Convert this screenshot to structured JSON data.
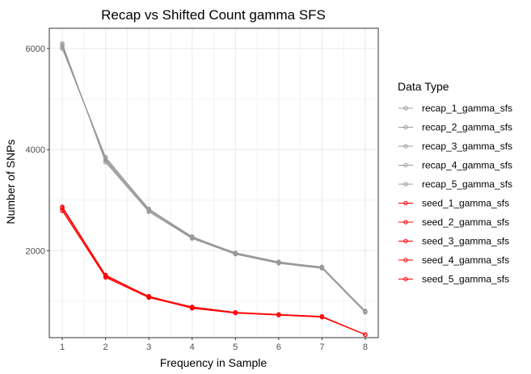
{
  "chart_data": {
    "type": "line",
    "title": "Recap vs Shifted Count gamma SFS",
    "xlabel": "Frequency in Sample",
    "ylabel": "Number of SNPs",
    "x": [
      1,
      2,
      3,
      4,
      5,
      6,
      7,
      8
    ],
    "xlim": [
      0.7,
      8.3
    ],
    "ylim": [
      280,
      6400
    ],
    "yticks": [
      2000,
      4000,
      6000
    ],
    "grid": true,
    "legend_title": "Data Type",
    "legend_position": "right",
    "colors": {
      "recap": "#999999",
      "seed": "#ff0000",
      "panel_border": "#333333",
      "grid": "#ebebeb"
    },
    "series": [
      {
        "name": "recap_1_gamma_sfs",
        "group": "recap",
        "values": [
          6080,
          3780,
          2790,
          2250,
          1940,
          1760,
          1660,
          790
        ]
      },
      {
        "name": "recap_2_gamma_sfs",
        "group": "recap",
        "values": [
          6000,
          3830,
          2830,
          2270,
          1960,
          1780,
          1670,
          810
        ]
      },
      {
        "name": "recap_3_gamma_sfs",
        "group": "recap",
        "values": [
          6100,
          3750,
          2770,
          2240,
          1930,
          1750,
          1650,
          780
        ]
      },
      {
        "name": "recap_4_gamma_sfs",
        "group": "recap",
        "values": [
          6020,
          3850,
          2820,
          2280,
          1950,
          1770,
          1680,
          800
        ]
      },
      {
        "name": "recap_5_gamma_sfs",
        "group": "recap",
        "values": [
          6050,
          3800,
          2800,
          2260,
          1945,
          1765,
          1660,
          790
        ]
      },
      {
        "name": "seed_1_gamma_sfs",
        "group": "seed",
        "values": [
          2870,
          1520,
          1090,
          890,
          780,
          740,
          700,
          340
        ]
      },
      {
        "name": "seed_2_gamma_sfs",
        "group": "seed",
        "values": [
          2800,
          1470,
          1070,
          870,
          770,
          730,
          690,
          340
        ]
      },
      {
        "name": "seed_3_gamma_sfs",
        "group": "seed",
        "values": [
          2840,
          1500,
          1100,
          880,
          775,
          735,
          695,
          340
        ]
      },
      {
        "name": "seed_4_gamma_sfs",
        "group": "seed",
        "values": [
          2790,
          1480,
          1080,
          860,
          765,
          725,
          685,
          340
        ]
      },
      {
        "name": "seed_5_gamma_sfs",
        "group": "seed",
        "values": [
          2850,
          1510,
          1085,
          885,
          780,
          738,
          700,
          340
        ]
      }
    ]
  }
}
